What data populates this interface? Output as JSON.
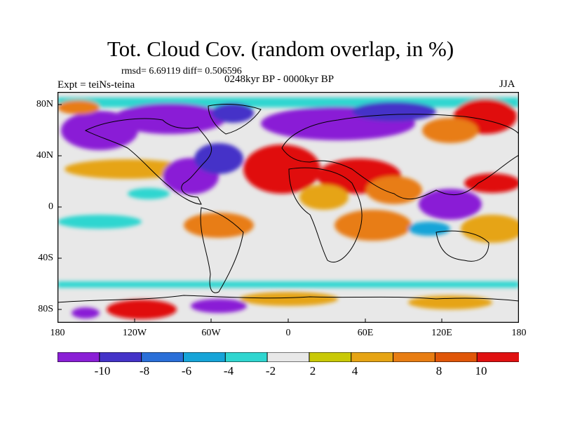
{
  "title": "Tot. Cloud Cov. (random overlap, in %)",
  "stats": "rmsd= 6.69119 diff= 0.506596",
  "expt": "Expt = teiNs-teina",
  "period": "0248kyr BP - 0000kyr BP",
  "season": "JJA",
  "lat_labels": [
    "80N",
    "40N",
    "0",
    "40S",
    "80S"
  ],
  "lon_labels": [
    "180",
    "120W",
    "60W",
    "0",
    "60E",
    "120E",
    "180"
  ],
  "colorbar": {
    "colors": [
      "#8a1fd6",
      "#4433c8",
      "#2a6fd8",
      "#16a4d8",
      "#2fd6d0",
      "#e8e8e8",
      "#c9c906",
      "#e6a414",
      "#e87d12",
      "#e05608",
      "#e01010"
    ],
    "labels": [
      "-10",
      "-8",
      "-6",
      "-4",
      "-2",
      "2",
      "4",
      "8",
      "10"
    ]
  },
  "map": {
    "background": "#e8e8e8",
    "coastline_color": "#000000"
  }
}
